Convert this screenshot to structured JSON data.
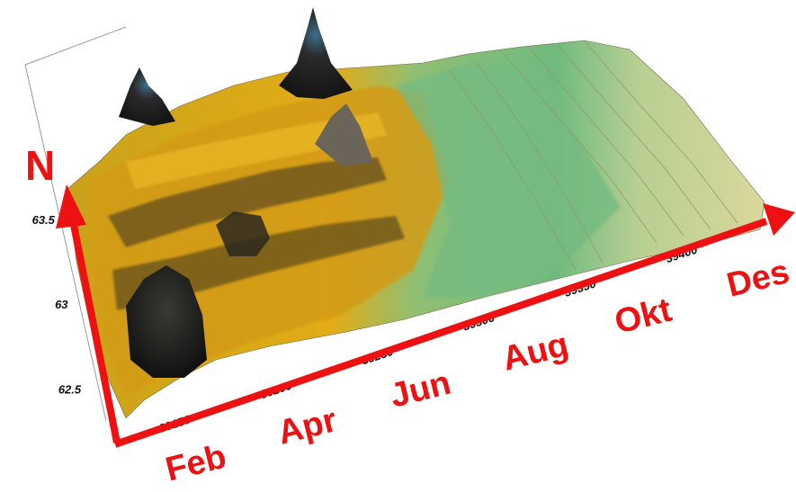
{
  "chart_data": {
    "type": "surface-3d",
    "x_ticks": [
      "39150",
      "39200",
      "39250",
      "39300",
      "39350",
      "39400"
    ],
    "y_ticks": [
      "62.5",
      "63",
      "63.5"
    ],
    "months": [
      "Feb",
      "Apr",
      "Jun",
      "Aug",
      "Okt",
      "Des"
    ],
    "north_label": "N",
    "xlim": [
      39125,
      39440
    ],
    "ylim": [
      62.3,
      63.6
    ],
    "colors": {
      "arrow": "#ee1111",
      "surface_low": "#dcd89a",
      "surface_mid": "#7fc48e",
      "surface_high": "#e0a91a",
      "surface_peak": "#1e1e1e"
    }
  }
}
